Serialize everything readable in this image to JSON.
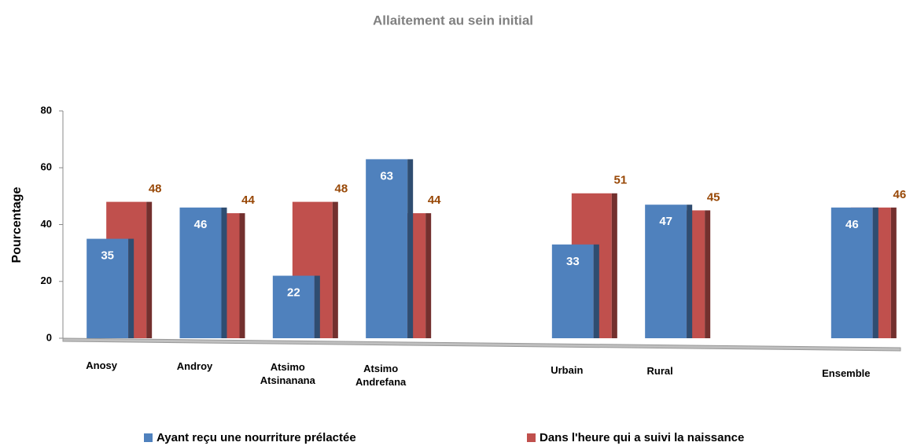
{
  "chart_data": {
    "type": "bar",
    "title": "Allaitement au sein initial",
    "y_label": "Pourcentage",
    "categories": [
      "Anosy",
      "Androy",
      "Atsimo Atsinanana",
      "Atsimo Andrefana",
      null,
      "Urbain",
      "Rural",
      null,
      "Ensemble"
    ],
    "series": [
      {
        "name": "Ayant reçu une nourriture prélactée",
        "color": "#4f81bd",
        "values": [
          35,
          46,
          22,
          63,
          null,
          33,
          47,
          null,
          46
        ]
      },
      {
        "name": "Dans l'heure qui a suivi la naissance",
        "color": "#c0504d",
        "values": [
          48,
          44,
          48,
          44,
          null,
          51,
          45,
          null,
          46
        ]
      }
    ],
    "ylim": [
      0,
      80
    ],
    "yticks": [
      0,
      20,
      40,
      60,
      80
    ],
    "legend": "bottom"
  }
}
